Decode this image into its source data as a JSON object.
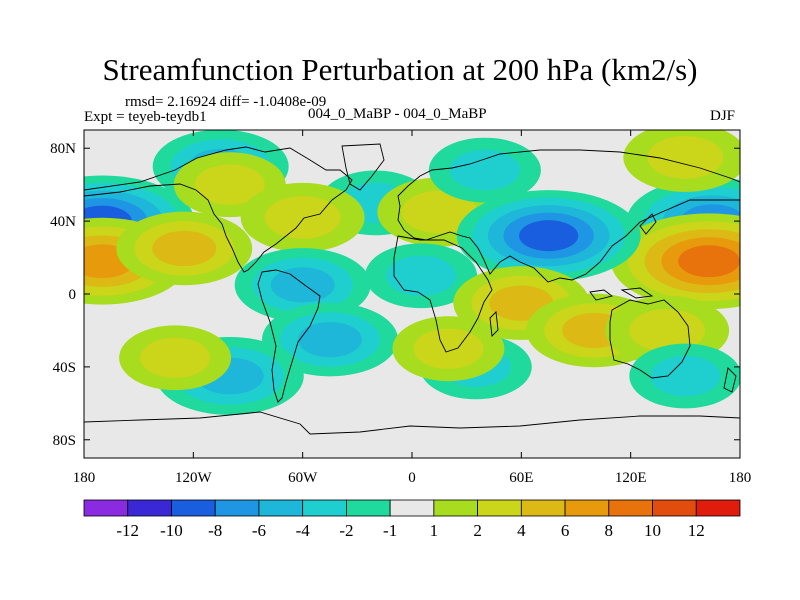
{
  "chart_data": {
    "type": "heatmap",
    "title": "Streamfunction Perturbation at 200 hPa (km2/s)",
    "stats_label": "rmsd= 2.16924 diff= -1.0408e-09",
    "experiment_label": "Expt = teyeb-teydb1",
    "center_label": "004_0_MaBP - 004_0_MaBP",
    "season": "DJF",
    "x_range": [
      -180,
      180
    ],
    "y_range": [
      -90,
      90
    ],
    "x_ticks": [
      {
        "value": -180,
        "label": "180"
      },
      {
        "value": -120,
        "label": "120W"
      },
      {
        "value": -60,
        "label": "60W"
      },
      {
        "value": 0,
        "label": "0"
      },
      {
        "value": 60,
        "label": "60E"
      },
      {
        "value": 120,
        "label": "120E"
      },
      {
        "value": 180,
        "label": "180"
      }
    ],
    "y_ticks": [
      {
        "value": 80,
        "label": "80N"
      },
      {
        "value": 40,
        "label": "40N"
      },
      {
        "value": 0,
        "label": "0"
      },
      {
        "value": -40,
        "label": "40S"
      },
      {
        "value": -80,
        "label": "80S"
      }
    ],
    "colorbar": {
      "colors": [
        "#8a2be2",
        "#3a28d6",
        "#1a5ee0",
        "#1f96e3",
        "#1fb7d9",
        "#1fcfd0",
        "#20d99c",
        "#e8e8e8",
        "#a8dc1e",
        "#cbd51a",
        "#dcb914",
        "#e69a0c",
        "#e8720c",
        "#e24c0c",
        "#e01c0c"
      ],
      "labels": [
        "-12",
        "-10",
        "-8",
        "-6",
        "-4",
        "-2",
        "-1",
        "1",
        "2",
        "4",
        "6",
        "8",
        "10",
        "12"
      ],
      "levels": [
        -12,
        -10,
        -8,
        -6,
        -4,
        -2,
        -1,
        1,
        2,
        4,
        6,
        8,
        10,
        12
      ]
    },
    "anomalies": [
      {
        "lon": -170,
        "lat": 40,
        "value": -8
      },
      {
        "lon": 165,
        "lat": 40,
        "value": -7
      },
      {
        "lon": -170,
        "lat": 18,
        "value": 7
      },
      {
        "lon": 163,
        "lat": 18,
        "value": 9
      },
      {
        "lon": -125,
        "lat": 25,
        "value": 4
      },
      {
        "lon": -105,
        "lat": 70,
        "value": -4
      },
      {
        "lon": -100,
        "lat": 60,
        "value": 2
      },
      {
        "lon": -20,
        "lat": 50,
        "value": -2
      },
      {
        "lon": -60,
        "lat": 42,
        "value": 3
      },
      {
        "lon": 15,
        "lat": 45,
        "value": 3
      },
      {
        "lon": 40,
        "lat": 68,
        "value": -2
      },
      {
        "lon": 75,
        "lat": 32,
        "value": -8
      },
      {
        "lon": 150,
        "lat": 75,
        "value": 3
      },
      {
        "lon": -60,
        "lat": 5,
        "value": -4
      },
      {
        "lon": 5,
        "lat": 10,
        "value": -2
      },
      {
        "lon": 60,
        "lat": -5,
        "value": 4
      },
      {
        "lon": 100,
        "lat": -20,
        "value": 4
      },
      {
        "lon": 140,
        "lat": -20,
        "value": 3
      },
      {
        "lon": -45,
        "lat": -25,
        "value": -4
      },
      {
        "lon": -100,
        "lat": -45,
        "value": -5
      },
      {
        "lon": 35,
        "lat": -40,
        "value": -2
      },
      {
        "lon": 150,
        "lat": -45,
        "value": -2
      },
      {
        "lon": -130,
        "lat": -35,
        "value": 2
      },
      {
        "lon": 20,
        "lat": -30,
        "value": 2
      }
    ]
  }
}
